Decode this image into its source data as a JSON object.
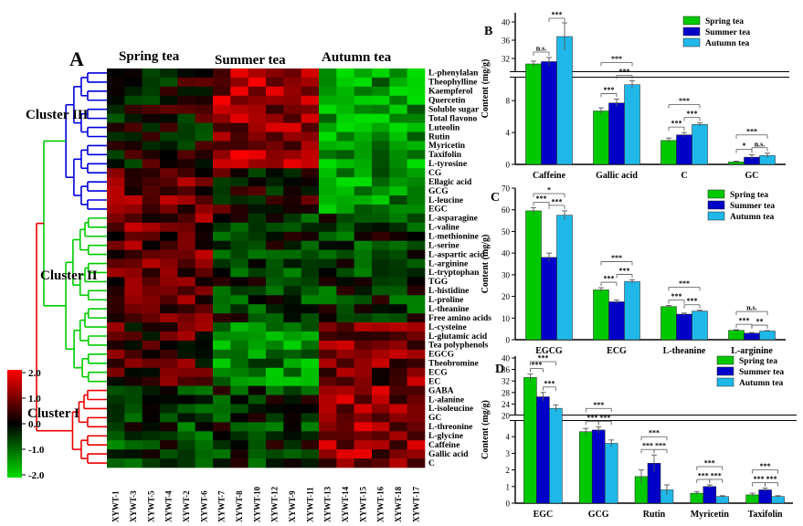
{
  "panel_labels": {
    "A": "A",
    "B": "B",
    "C": "C",
    "D": "D"
  },
  "heatmap": {
    "group_labels": [
      "Spring tea",
      "Summer tea",
      "Autumn tea"
    ],
    "samples": [
      "XYWT-1",
      "XYWT-3",
      "XYWT-5",
      "XYWT-4",
      "XYWT-2",
      "XYWT-6",
      "XYWT-7",
      "XYWT-8",
      "XYWT-10",
      "XYWT-12",
      "XYWT-9",
      "XYWT-11",
      "XYWT-13",
      "XYWT-14",
      "XYWT-15",
      "XYWT-16",
      "XYWT-18",
      "XYWT-17"
    ],
    "rows": [
      "L-phenylalan",
      "Theophylline",
      "Kaempferol",
      "Quercetin",
      "Soluble sugar",
      "Total flavono",
      "Luteolin",
      "Rutin",
      "Myricetin",
      "Taxifolin",
      "L-tyrosine",
      "CG",
      "Ellagic acid",
      "GCG",
      "L-leucine",
      "EGC",
      "L-asparagine",
      "L-valine",
      "L-methionine",
      "L-serine",
      "L-aspartic acid",
      "L-arginine",
      "L-tryptophan",
      "TGG",
      "L-histidine",
      "L-proline",
      "L-theanine",
      "Free amino acids",
      "L-cysteine",
      "L-glutamic acid",
      "Tea polyphenols",
      "EGCG",
      "Theobromine",
      "ECG",
      "EC",
      "GABA",
      "L-alanine",
      "L-isoleucine",
      "GC",
      "L-threonine",
      "L-glycine",
      "Caffeine",
      "Gallic acid",
      "C"
    ],
    "clusters": [
      "Cluster III",
      "Cluster II",
      "Cluster I"
    ],
    "colorbar": {
      "ticks": [
        "2.0",
        "1.0",
        "0.0",
        "-1.0",
        "-2.0"
      ],
      "low_color": "#00dd00",
      "mid_color": "#000000",
      "high_color": "#ff0000"
    }
  },
  "chart_data": [
    {
      "type": "bar",
      "panel": "B",
      "ylabel": "Content (mg/g)",
      "categories": [
        "Caffeine",
        "Gallic acid",
        "C",
        "GC"
      ],
      "series": [
        {
          "name": "Spring tea",
          "color": "#00c800",
          "values": [
            30.8,
            6.7,
            3.0,
            0.3
          ],
          "errors": [
            0.6,
            0.4,
            0.3,
            0.1
          ]
        },
        {
          "name": "Summer tea",
          "color": "#0000c8",
          "values": [
            31.3,
            7.7,
            3.7,
            0.9
          ],
          "errors": [
            0.9,
            0.5,
            0.3,
            0.3
          ]
        },
        {
          "name": "Autumn tea",
          "color": "#20b8e8",
          "values": [
            36.8,
            10.0,
            5.0,
            1.1
          ],
          "errors": [
            3.0,
            0.5,
            0.2,
            0.3
          ]
        }
      ],
      "axis_break": [
        11,
        29
      ],
      "yticks": [
        0,
        4,
        8,
        32,
        36,
        40
      ],
      "significance": [
        [
          "n.s.",
          "***"
        ],
        [
          "***",
          "***",
          "***"
        ],
        [
          "***",
          "***",
          "***"
        ],
        [
          "*",
          "n.s.",
          "***"
        ]
      ]
    },
    {
      "type": "bar",
      "panel": "C",
      "ylabel": "Content (mg/g)",
      "categories": [
        "EGCG",
        "ECG",
        "L-theanine",
        "L-arginine"
      ],
      "series": [
        {
          "name": "Spring tea",
          "color": "#00c800",
          "values": [
            59.5,
            23.0,
            15.3,
            4.3
          ],
          "errors": [
            1.5,
            1.0,
            0.5,
            0.3
          ]
        },
        {
          "name": "Summer tea",
          "color": "#0000c8",
          "values": [
            38.0,
            17.5,
            11.8,
            3.0
          ],
          "errors": [
            2.0,
            0.8,
            0.5,
            0.3
          ]
        },
        {
          "name": "Autumn tea",
          "color": "#20b8e8",
          "values": [
            57.5,
            26.8,
            13.2,
            4.0
          ],
          "errors": [
            2.0,
            0.8,
            0.4,
            0.2
          ]
        }
      ],
      "ylim": [
        0,
        70
      ],
      "yticks": [
        0,
        10,
        20,
        30,
        40,
        50,
        60,
        70
      ],
      "significance": [
        [
          "***",
          "***",
          "*"
        ],
        [
          "***",
          "***",
          "***"
        ],
        [
          "***",
          "***",
          "***"
        ],
        [
          "***",
          "**",
          "n.s."
        ]
      ]
    },
    {
      "type": "bar",
      "panel": "D",
      "ylabel": "Content (mg/g)",
      "categories": [
        "EGC",
        "GCG",
        "Rutin",
        "Myricetin",
        "Taxifolin"
      ],
      "series": [
        {
          "name": "Spring tea",
          "color": "#00c800",
          "values": [
            33.2,
            4.3,
            1.6,
            0.6,
            0.5
          ],
          "errors": [
            1.2,
            0.2,
            0.4,
            0.1,
            0.1
          ]
        },
        {
          "name": "Summer tea",
          "color": "#0000c8",
          "values": [
            26.5,
            4.4,
            2.4,
            1.0,
            0.8
          ],
          "errors": [
            1.5,
            0.2,
            0.5,
            0.1,
            0.1
          ]
        },
        {
          "name": "Autumn tea",
          "color": "#20b8e8",
          "values": [
            22.5,
            3.6,
            0.8,
            0.4,
            0.4
          ],
          "errors": [
            1.2,
            0.2,
            0.3,
            0.05,
            0.05
          ]
        }
      ],
      "axis_break": [
        5,
        20
      ],
      "yticks": [
        0,
        1,
        2,
        3,
        4,
        20,
        24,
        28,
        32,
        36,
        40
      ],
      "significance": [
        [
          "***",
          "***",
          "***"
        ],
        [
          "***",
          "***",
          "***"
        ],
        [
          "***",
          "***",
          "***"
        ],
        [
          "***",
          "***",
          "***"
        ],
        [
          "***",
          "***",
          "***"
        ]
      ]
    }
  ]
}
